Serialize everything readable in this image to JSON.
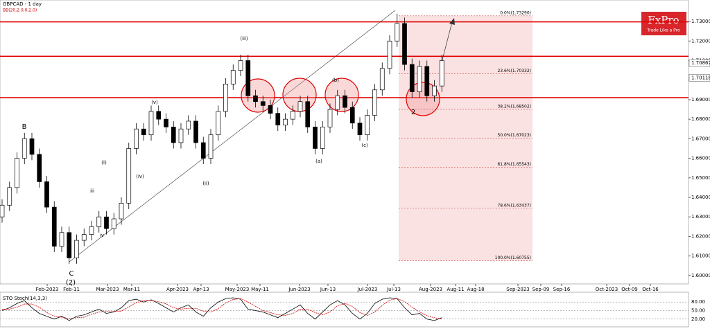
{
  "chart_data": {
    "type": "candlestick",
    "title": "GBPCAD - 1 day",
    "subtitle": "BB(20,2.0,0,2.0)",
    "logo": {
      "name": "FxPro",
      "tagline": "Trade Like a Pro"
    },
    "ylim": [
      1.5957,
      1.741
    ],
    "yticks": [
      {
        "value": 1.6,
        "label": "1.60000"
      },
      {
        "value": 1.61,
        "label": "1.61000"
      },
      {
        "value": 1.62,
        "label": "1.62000"
      },
      {
        "value": 1.63,
        "label": "1.63000"
      },
      {
        "value": 1.64,
        "label": "1.64000"
      },
      {
        "value": 1.65,
        "label": "1.65000"
      },
      {
        "value": 1.66,
        "label": "1.66000"
      },
      {
        "value": 1.67,
        "label": "1.67000"
      },
      {
        "value": 1.68,
        "label": "1.68000"
      },
      {
        "value": 1.69,
        "label": "1.69000"
      },
      {
        "value": 1.7,
        "label": "1.70000"
      },
      {
        "value": 1.71,
        "label": "1.71000"
      },
      {
        "value": 1.72,
        "label": "1.72000"
      },
      {
        "value": 1.73,
        "label": "1.73000"
      }
    ],
    "price_markers": [
      {
        "value": 1.70867,
        "label": "1.70867"
      },
      {
        "value": 1.70118,
        "label": "1.70118"
      }
    ],
    "levels": [
      1.7298,
      1.7122,
      1.691
    ],
    "fibonacci": [
      {
        "value": 1.7329,
        "label": "0.0%(1.73290)"
      },
      {
        "value": 1.70332,
        "label": "23.6%(1.70332)"
      },
      {
        "value": 1.68502,
        "label": "38.2%(1.68502)"
      },
      {
        "value": 1.67023,
        "label": "50.0%(1.67023)"
      },
      {
        "value": 1.65543,
        "label": "61.8%(1.65543)"
      },
      {
        "value": 1.63437,
        "label": "78.6%(1.63437)"
      },
      {
        "value": 1.60755,
        "label": "100.0%(1.60755)"
      }
    ],
    "x_labels": [
      "Feb-2023",
      "Feb-11",
      "Mar-2023",
      "Mar-11",
      "Apr-2023",
      "Apr-13",
      "May-2023",
      "May-11",
      "Jun-2023",
      "Jun-13",
      "Jul-2023",
      "Jul-13",
      "Aug-2023",
      "Aug-11",
      "Aug-18",
      "Sep-2023",
      "Sep-09",
      "Sep-16",
      "Oct-2023",
      "Oct-09",
      "Oct-16"
    ],
    "annotations": [
      "B",
      "C",
      "(2)",
      "2",
      "(i)",
      "(ii)",
      "(iii)",
      "(iv)",
      "(v)",
      "(a)",
      "(b)",
      "(c)",
      "iii",
      "iv"
    ],
    "ohlc": [
      [
        1.63,
        1.639,
        1.627,
        1.636
      ],
      [
        1.636,
        1.648,
        1.633,
        1.645
      ],
      [
        1.645,
        1.663,
        1.642,
        1.66
      ],
      [
        1.66,
        1.673,
        1.657,
        1.67
      ],
      [
        1.67,
        1.673,
        1.659,
        1.662
      ],
      [
        1.662,
        1.665,
        1.645,
        1.648
      ],
      [
        1.648,
        1.651,
        1.632,
        1.635
      ],
      [
        1.635,
        1.638,
        1.612,
        1.615
      ],
      [
        1.615,
        1.625,
        1.612,
        1.622
      ],
      [
        1.622,
        1.625,
        1.606,
        1.609
      ],
      [
        1.609,
        1.621,
        1.606,
        1.618
      ],
      [
        1.618,
        1.624,
        1.615,
        1.621
      ],
      [
        1.621,
        1.628,
        1.618,
        1.625
      ],
      [
        1.625,
        1.633,
        1.622,
        1.63
      ],
      [
        1.63,
        1.633,
        1.621,
        1.624
      ],
      [
        1.624,
        1.632,
        1.621,
        1.629
      ],
      [
        1.629,
        1.64,
        1.626,
        1.637
      ],
      [
        1.637,
        1.668,
        1.634,
        1.665
      ],
      [
        1.665,
        1.678,
        1.662,
        1.675
      ],
      [
        1.675,
        1.678,
        1.669,
        1.672
      ],
      [
        1.672,
        1.687,
        1.669,
        1.684
      ],
      [
        1.684,
        1.687,
        1.677,
        1.68
      ],
      [
        1.68,
        1.683,
        1.673,
        1.676
      ],
      [
        1.676,
        1.679,
        1.665,
        1.668
      ],
      [
        1.668,
        1.678,
        1.665,
        1.675
      ],
      [
        1.675,
        1.682,
        1.672,
        1.679
      ],
      [
        1.679,
        1.682,
        1.665,
        1.668
      ],
      [
        1.668,
        1.671,
        1.657,
        1.66
      ],
      [
        1.66,
        1.675,
        1.657,
        1.672
      ],
      [
        1.672,
        1.687,
        1.669,
        1.684
      ],
      [
        1.684,
        1.701,
        1.681,
        1.698
      ],
      [
        1.698,
        1.708,
        1.695,
        1.705
      ],
      [
        1.705,
        1.713,
        1.702,
        1.71
      ],
      [
        1.71,
        1.713,
        1.689,
        1.692
      ],
      [
        1.692,
        1.695,
        1.686,
        1.689
      ],
      [
        1.689,
        1.692,
        1.684,
        1.687
      ],
      [
        1.687,
        1.69,
        1.68,
        1.683
      ],
      [
        1.683,
        1.686,
        1.674,
        1.677
      ],
      [
        1.677,
        1.683,
        1.674,
        1.68
      ],
      [
        1.68,
        1.687,
        1.677,
        1.684
      ],
      [
        1.684,
        1.692,
        1.681,
        1.689
      ],
      [
        1.689,
        1.692,
        1.673,
        1.676
      ],
      [
        1.676,
        1.679,
        1.662,
        1.665
      ],
      [
        1.665,
        1.679,
        1.662,
        1.676
      ],
      [
        1.676,
        1.688,
        1.673,
        1.685
      ],
      [
        1.685,
        1.695,
        1.682,
        1.692
      ],
      [
        1.692,
        1.695,
        1.683,
        1.686
      ],
      [
        1.686,
        1.689,
        1.675,
        1.678
      ],
      [
        1.678,
        1.681,
        1.669,
        1.672
      ],
      [
        1.672,
        1.685,
        1.669,
        1.682
      ],
      [
        1.682,
        1.698,
        1.679,
        1.695
      ],
      [
        1.695,
        1.709,
        1.692,
        1.706
      ],
      [
        1.706,
        1.723,
        1.703,
        1.72
      ],
      [
        1.72,
        1.734,
        1.717,
        1.729
      ],
      [
        1.729,
        1.732,
        1.705,
        1.708
      ],
      [
        1.708,
        1.711,
        1.691,
        1.694
      ],
      [
        1.694,
        1.71,
        1.691,
        1.707
      ],
      [
        1.707,
        1.71,
        1.689,
        1.692
      ],
      [
        1.692,
        1.7,
        1.689,
        1.697
      ],
      [
        1.697,
        1.713,
        1.694,
        1.71
      ]
    ],
    "up_color": "#ffffff",
    "down_color": "#000000",
    "level_color": "#e00000",
    "stochastic": {
      "title": "STO Stoch(14,3,3)",
      "ylim": [
        0,
        100
      ],
      "yticks": [
        {
          "value": 20,
          "label": "20.00"
        },
        {
          "value": 50,
          "label": "50.00"
        },
        {
          "value": 80,
          "label": "80.00"
        }
      ],
      "series": [
        {
          "name": "%K",
          "color": "#000000",
          "values": [
            50,
            60,
            75,
            85,
            60,
            40,
            30,
            20,
            30,
            15,
            30,
            35,
            45,
            55,
            40,
            45,
            60,
            85,
            90,
            80,
            88,
            75,
            60,
            45,
            60,
            70,
            45,
            30,
            60,
            80,
            92,
            95,
            90,
            55,
            50,
            45,
            35,
            25,
            40,
            55,
            70,
            40,
            20,
            45,
            70,
            85,
            70,
            40,
            20,
            40,
            75,
            90,
            95,
            92,
            60,
            35,
            40,
            20,
            15,
            25
          ]
        },
        {
          "name": "%D",
          "color": "#d00000",
          "values": [
            55,
            55,
            62,
            73,
            73,
            62,
            43,
            30,
            27,
            22,
            25,
            27,
            37,
            45,
            47,
            47,
            48,
            63,
            78,
            85,
            86,
            81,
            74,
            60,
            55,
            58,
            58,
            48,
            45,
            57,
            77,
            89,
            92,
            80,
            65,
            50,
            43,
            35,
            33,
            40,
            55,
            55,
            43,
            35,
            45,
            67,
            75,
            65,
            43,
            33,
            45,
            68,
            87,
            92,
            82,
            62,
            45,
            32,
            25,
            20
          ]
        }
      ]
    }
  }
}
